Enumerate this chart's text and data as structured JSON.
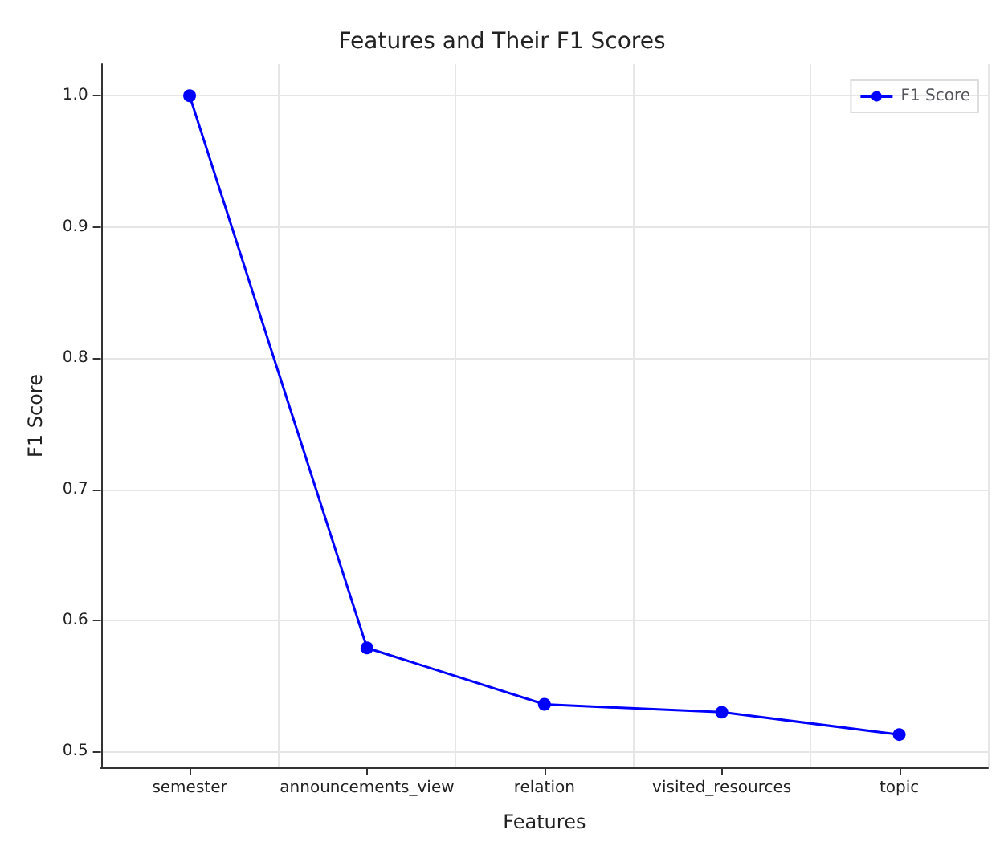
{
  "chart_data": {
    "type": "line",
    "title": "Features and Their F1 Scores",
    "xlabel": "Features",
    "ylabel": "F1 Score",
    "categories": [
      "semester",
      "announcements_view",
      "relation",
      "visited_resources",
      "topic"
    ],
    "series": [
      {
        "name": "F1 Score",
        "color": "#0000ff",
        "values": [
          1.0,
          0.579,
          0.536,
          0.53,
          0.513
        ]
      }
    ],
    "ylim": [
      0.488,
      1.024
    ],
    "yticks": [
      0.5,
      0.6,
      0.7,
      0.8,
      0.9,
      {
        "value": 1,
        "label": "1.0"
      }
    ],
    "grid": true,
    "legend": "top right",
    "marker": "circle",
    "line_style": "solid"
  }
}
